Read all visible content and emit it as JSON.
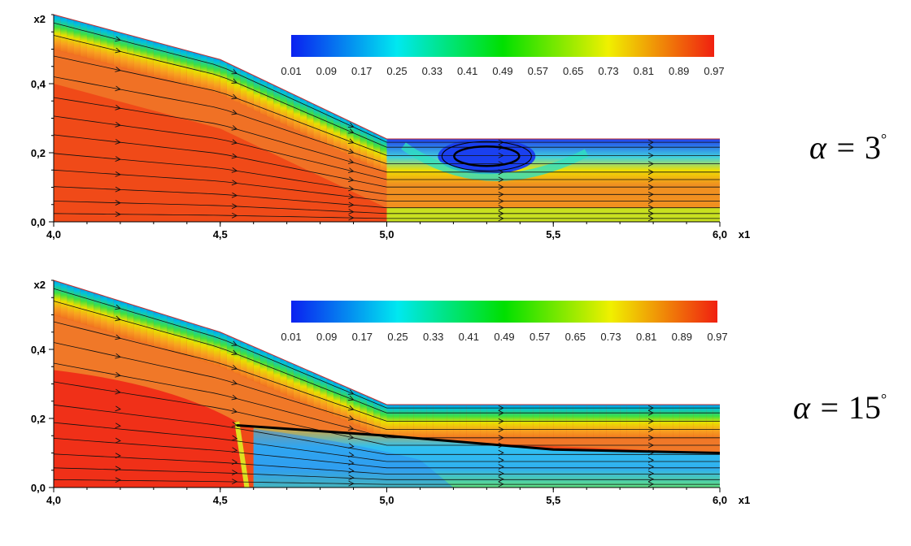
{
  "chart_data": [
    {
      "type": "heatmap",
      "annotation": "α = 3°",
      "angle_deg": 3,
      "xlabel": "x1",
      "ylabel": "x2",
      "xlim": [
        4.0,
        6.0
      ],
      "ylim": [
        0.0,
        0.6
      ],
      "x_ticks": [
        "4,0",
        "4,5",
        "5,0",
        "5,5",
        "6,0"
      ],
      "y_ticks": [
        "0,0",
        "0,2",
        "0,4"
      ],
      "colorbar_ticks": [
        "0.01",
        "0.09",
        "0.17",
        "0.25",
        "0.33",
        "0.41",
        "0.49",
        "0.57",
        "0.65",
        "0.73",
        "0.81",
        "0.89",
        "0.97"
      ],
      "colormap": [
        "#0a20f0",
        "#00e8f0",
        "#00e000",
        "#f0f000",
        "#f02010"
      ],
      "boundary_top": [
        [
          4.0,
          0.6
        ],
        [
          4.5,
          0.47
        ],
        [
          5.0,
          0.24
        ],
        [
          6.0,
          0.24
        ]
      ],
      "core_value": 0.97,
      "recirculation_center": [
        5.3,
        0.17
      ],
      "grid": false
    },
    {
      "type": "heatmap",
      "annotation": "α = 15°",
      "angle_deg": 15,
      "xlabel": "x1",
      "ylabel": "x2",
      "xlim": [
        4.0,
        6.0
      ],
      "ylim": [
        0.0,
        0.6
      ],
      "x_ticks": [
        "4,0",
        "4,5",
        "5,0",
        "5,5",
        "6,0"
      ],
      "y_ticks": [
        "0,0",
        "0,2",
        "0,4"
      ],
      "colorbar_ticks": [
        "0.01",
        "0.09",
        "0.17",
        "0.25",
        "0.33",
        "0.41",
        "0.49",
        "0.57",
        "0.65",
        "0.73",
        "0.81",
        "0.89",
        "0.97"
      ],
      "colormap": [
        "#0a20f0",
        "#00e8f0",
        "#00e000",
        "#f0f000",
        "#f02010"
      ],
      "boundary_top": [
        [
          4.0,
          0.6
        ],
        [
          4.5,
          0.45
        ],
        [
          5.0,
          0.24
        ],
        [
          6.0,
          0.24
        ]
      ],
      "core_value": 0.97,
      "interface_line": [
        [
          4.55,
          0.18
        ],
        [
          5.0,
          0.15
        ],
        [
          5.5,
          0.11
        ],
        [
          6.0,
          0.1
        ]
      ],
      "grid": false
    }
  ]
}
